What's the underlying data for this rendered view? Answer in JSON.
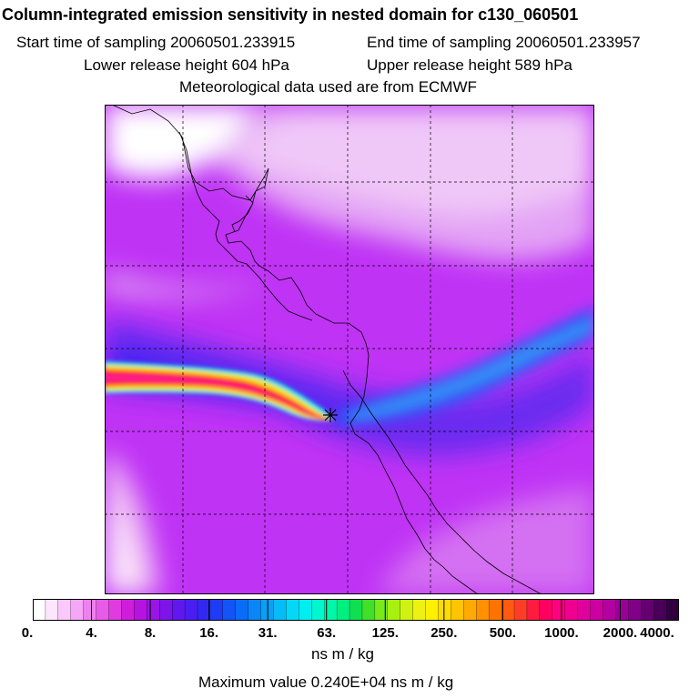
{
  "title": "Column-integrated emission sensitivity in nested domain for c130_060501",
  "sampling": {
    "start": "Start time of sampling 20060501.233915",
    "end": "End time of sampling 20060501.233957"
  },
  "release": {
    "lower": "Lower release height  604 hPa",
    "upper": "Upper release height  589 hPa"
  },
  "met_data": "Meteorological data used are from ECMWF",
  "colorbar": {
    "ticks": [
      "0.",
      "4.",
      "8.",
      "16.",
      "31.",
      "63.",
      "125.",
      "250.",
      "500.",
      "1000.",
      "2000.",
      "4000."
    ],
    "colors": [
      "#ffffff",
      "#fde6fd",
      "#fbc8fb",
      "#f6a6f6",
      "#ef80ef",
      "#e85be8",
      "#df3bdf",
      "#cf1ddb",
      "#b812e0",
      "#9a14e6",
      "#7d14ea",
      "#6018ee",
      "#4a1ef2",
      "#3228f4",
      "#1e3cf5",
      "#1254f6",
      "#0a6cf7",
      "#0a86f7",
      "#08a0f7",
      "#06bcf7",
      "#05d8f7",
      "#00eef0",
      "#00f7d0",
      "#00f7a8",
      "#00f080",
      "#10e050",
      "#40e028",
      "#78ea18",
      "#a8f010",
      "#d0f210",
      "#eef210",
      "#fff000",
      "#ffdc00",
      "#ffc400",
      "#ffaa00",
      "#ff9000",
      "#ff7400",
      "#ff5a10",
      "#ff3c28",
      "#ff1a40",
      "#ff0060",
      "#ff0080",
      "#f00090",
      "#e0009c",
      "#cc00a0",
      "#b400a0",
      "#9a0098",
      "#800088",
      "#640070",
      "#480058",
      "#300040"
    ],
    "unit": "ns m / kg"
  },
  "max_value": "Maximum value  0.240E+04 ns m / kg",
  "colors": {
    "background": "#bf33f5",
    "plume_core": "#ff0033",
    "corridor": "#3a7cff"
  }
}
